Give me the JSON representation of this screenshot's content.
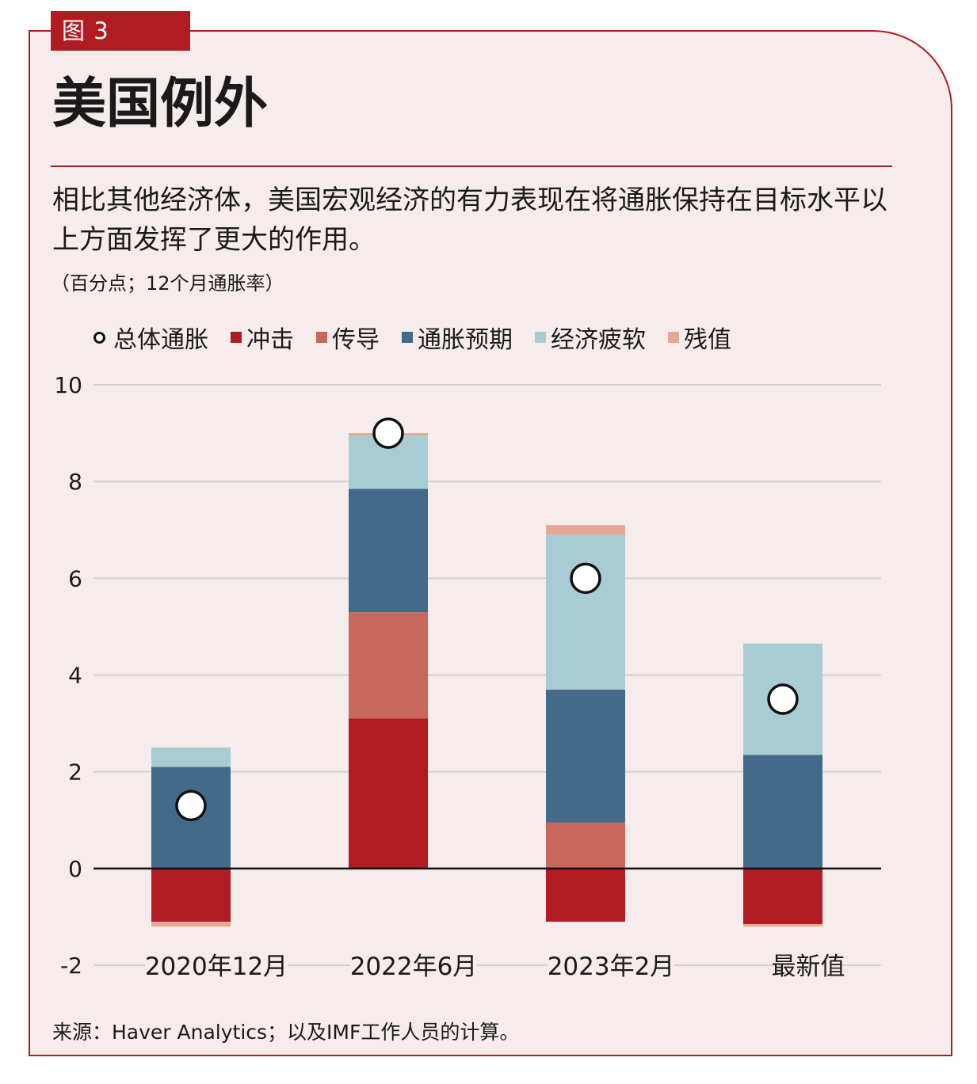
{
  "figure_tag": "图 3",
  "title": "美国例外",
  "subtitle": "相比其他经济体，美国宏观经济的有力表现在将通胀保持在目标水平以上方面发挥了更大的作用。",
  "unit_note": "（百分点；12个月通胀率）",
  "source": "来源：Haver Analytics；以及IMF工作人员的计算。",
  "legend": [
    {
      "label": "总体通胀",
      "kind": "circle",
      "color": "#ffffff"
    },
    {
      "label": "冲击",
      "kind": "square",
      "color": "#b01c22"
    },
    {
      "label": "传导",
      "kind": "square",
      "color": "#c6695c"
    },
    {
      "label": "通胀预期",
      "kind": "square",
      "color": "#436a89"
    },
    {
      "label": "经济疲软",
      "kind": "square",
      "color": "#a9ccd4"
    },
    {
      "label": "残值",
      "kind": "square",
      "color": "#e5a895"
    }
  ],
  "chart_data": {
    "type": "bar",
    "stacked": true,
    "categories": [
      "2020年12月",
      "2022年6月",
      "2023年2月",
      "最新值"
    ],
    "ylim": [
      -2,
      10
    ],
    "yticks": [
      10,
      8,
      6,
      4,
      2,
      0,
      -2
    ],
    "grid": true,
    "legend_position": "top",
    "series": [
      {
        "name": "冲击",
        "color": "#b01c22",
        "values": [
          -1.1,
          3.1,
          -1.1,
          -1.15
        ]
      },
      {
        "name": "传导",
        "color": "#c6695c",
        "values": [
          0,
          2.2,
          0.95,
          0
        ]
      },
      {
        "name": "通胀预期",
        "color": "#436a89",
        "values": [
          2.1,
          2.55,
          2.75,
          2.35
        ]
      },
      {
        "name": "经济疲软",
        "color": "#a9ccd4",
        "values": [
          0.4,
          1.1,
          3.2,
          2.3
        ]
      },
      {
        "name": "残值",
        "color": "#e5a895",
        "values": [
          -0.1,
          0.05,
          0.2,
          -0.05
        ]
      }
    ],
    "headline": {
      "name": "总体通胀",
      "values": [
        1.3,
        9.0,
        6.0,
        3.5
      ]
    }
  }
}
